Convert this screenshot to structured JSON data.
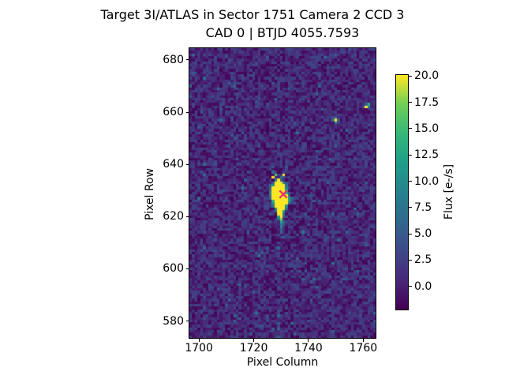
{
  "figure": {
    "suptitle": "Target 3I/ATLAS in Sector 1751 Camera 2 CCD 3",
    "axes_title": "CAD 0 | BTJD 4055.7593",
    "background_color": "#ffffff",
    "text_color": "#000000"
  },
  "chart_data": {
    "type": "heatmap",
    "title": "Target 3I/ATLAS in Sector 1751 Camera 2 CCD 3",
    "subtitle": "CAD 0 | BTJD 4055.7593",
    "xlabel": "Pixel Column",
    "ylabel": "Pixel Row",
    "colormap": "viridis",
    "grid": false,
    "x_extent": [
      1696.5,
      1764.5
    ],
    "y_extent": [
      573.5,
      684.5
    ],
    "xticks": [
      1700,
      1720,
      1740,
      1760
    ],
    "xtick_labels": [
      "1700",
      "1720",
      "1740",
      "1760"
    ],
    "yticks": [
      580,
      600,
      620,
      640,
      660,
      680
    ],
    "ytick_labels": [
      "580",
      "600",
      "620",
      "640",
      "660",
      "680"
    ],
    "vmin": -2.2,
    "vmax": 20.1,
    "colorbar": {
      "label": "Flux [e-/s]",
      "tick_values": [
        0,
        2.5,
        5,
        7.5,
        10,
        12.5,
        15,
        17.5,
        20
      ],
      "tick_labels": [
        "0.0",
        "2.5",
        "5.0",
        "7.5",
        "10.0",
        "12.5",
        "15.0",
        "17.5",
        "20.0"
      ]
    },
    "marker": {
      "symbol": "x",
      "col": 1730.8,
      "row": 629.3,
      "color": "#e8336e",
      "size": 13,
      "stroke_width": 2.4
    },
    "noise": {
      "seed": 42,
      "min": -2.1,
      "span": 5.3,
      "hot_fraction": 0.04
    },
    "features": [
      [
        1728,
        636,
        16
      ],
      [
        1731,
        636,
        20
      ],
      [
        1727,
        635,
        21
      ],
      [
        1730,
        635,
        7
      ],
      [
        1731,
        635,
        5
      ],
      [
        1728,
        634,
        9
      ],
      [
        1729,
        634,
        22
      ],
      [
        1730,
        634,
        5
      ],
      [
        1727,
        633,
        5
      ],
      [
        1728,
        633,
        22
      ],
      [
        1729,
        633,
        22
      ],
      [
        1730,
        633,
        22
      ],
      [
        1731,
        633,
        9
      ],
      [
        1732,
        633,
        5
      ],
      [
        1727,
        632,
        10
      ],
      [
        1728,
        632,
        22
      ],
      [
        1729,
        632,
        22
      ],
      [
        1730,
        632,
        22
      ],
      [
        1731,
        632,
        22
      ],
      [
        1732,
        632,
        7
      ],
      [
        1726,
        631,
        5
      ],
      [
        1727,
        631,
        22
      ],
      [
        1728,
        631,
        22
      ],
      [
        1729,
        631,
        22
      ],
      [
        1730,
        631,
        22
      ],
      [
        1731,
        631,
        22
      ],
      [
        1732,
        631,
        9
      ],
      [
        1726,
        630,
        7
      ],
      [
        1727,
        630,
        22
      ],
      [
        1728,
        630,
        22
      ],
      [
        1729,
        630,
        22
      ],
      [
        1730,
        630,
        22
      ],
      [
        1731,
        630,
        22
      ],
      [
        1732,
        630,
        12
      ],
      [
        1726,
        629,
        9
      ],
      [
        1727,
        629,
        22
      ],
      [
        1728,
        629,
        22
      ],
      [
        1729,
        629,
        22
      ],
      [
        1730,
        629,
        22
      ],
      [
        1731,
        629,
        22
      ],
      [
        1732,
        629,
        13
      ],
      [
        1733,
        629,
        5
      ],
      [
        1726,
        628,
        7
      ],
      [
        1727,
        628,
        22
      ],
      [
        1728,
        628,
        22
      ],
      [
        1729,
        628,
        22
      ],
      [
        1730,
        628,
        22
      ],
      [
        1731,
        628,
        22
      ],
      [
        1732,
        628,
        22
      ],
      [
        1733,
        628,
        6
      ],
      [
        1726,
        627,
        5
      ],
      [
        1727,
        627,
        22
      ],
      [
        1728,
        627,
        22
      ],
      [
        1729,
        627,
        22
      ],
      [
        1730,
        627,
        22
      ],
      [
        1731,
        627,
        22
      ],
      [
        1732,
        627,
        22
      ],
      [
        1733,
        627,
        11
      ],
      [
        1734,
        627,
        6
      ],
      [
        1727,
        626,
        14
      ],
      [
        1728,
        626,
        22
      ],
      [
        1729,
        626,
        22
      ],
      [
        1730,
        626,
        22
      ],
      [
        1731,
        626,
        22
      ],
      [
        1732,
        626,
        22
      ],
      [
        1733,
        626,
        12
      ],
      [
        1734,
        626,
        5
      ],
      [
        1727,
        625,
        10
      ],
      [
        1728,
        625,
        22
      ],
      [
        1729,
        625,
        22
      ],
      [
        1730,
        625,
        22
      ],
      [
        1731,
        625,
        22
      ],
      [
        1732,
        625,
        22
      ],
      [
        1733,
        625,
        7
      ],
      [
        1727,
        624,
        7
      ],
      [
        1728,
        624,
        22
      ],
      [
        1729,
        624,
        22
      ],
      [
        1730,
        624,
        22
      ],
      [
        1731,
        624,
        22
      ],
      [
        1732,
        624,
        10
      ],
      [
        1728,
        623,
        9
      ],
      [
        1729,
        623,
        22
      ],
      [
        1730,
        623,
        22
      ],
      [
        1731,
        623,
        22
      ],
      [
        1732,
        623,
        7
      ],
      [
        1728,
        622,
        6
      ],
      [
        1729,
        622,
        22
      ],
      [
        1730,
        622,
        22
      ],
      [
        1731,
        622,
        12
      ],
      [
        1729,
        621,
        20
      ],
      [
        1730,
        621,
        22
      ],
      [
        1731,
        621,
        7
      ],
      [
        1729,
        620,
        11
      ],
      [
        1730,
        620,
        22
      ],
      [
        1731,
        620,
        5
      ],
      [
        1729,
        619,
        7
      ],
      [
        1730,
        619,
        18
      ],
      [
        1730,
        618,
        13
      ],
      [
        1730,
        617,
        8
      ],
      [
        1731,
        617,
        5
      ],
      [
        1730,
        616,
        10
      ],
      [
        1730,
        615,
        5
      ],
      [
        1730,
        614,
        7
      ],
      [
        1731,
        612,
        6
      ],
      [
        1750,
        657,
        20
      ],
      [
        1749,
        657,
        7
      ],
      [
        1751,
        657,
        5
      ],
      [
        1750,
        656,
        8
      ],
      [
        1750,
        658,
        5
      ],
      [
        1749,
        658,
        4
      ],
      [
        1761,
        662,
        22
      ],
      [
        1762,
        663,
        13
      ],
      [
        1762,
        662,
        8
      ],
      [
        1761,
        663,
        6
      ],
      [
        1722,
        605,
        9
      ],
      [
        1723,
        606,
        5
      ]
    ]
  }
}
